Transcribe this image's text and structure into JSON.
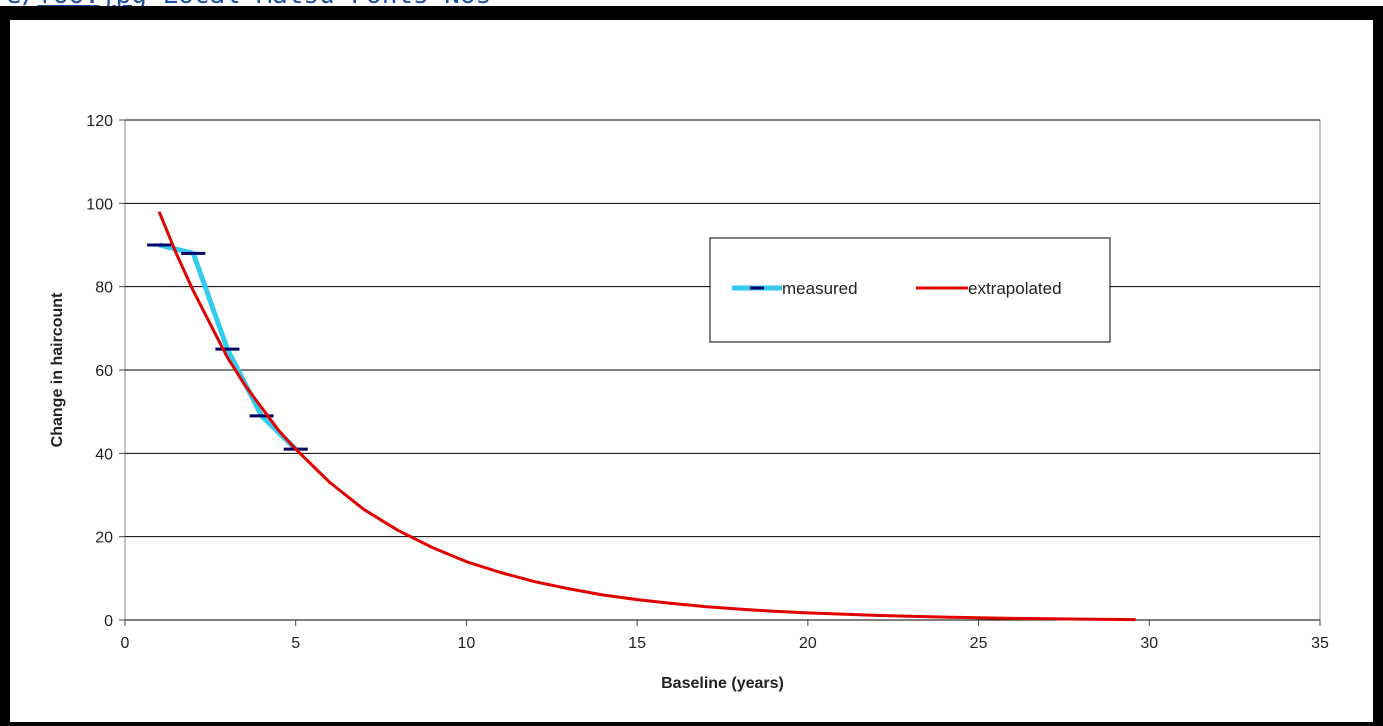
{
  "header": {
    "prefix": "e/",
    "link": "foo.jpg",
    "suffix": " Local Matsu Fonts Nos"
  },
  "colors": {
    "frame": "#000000",
    "grid": "#000000",
    "measured_line": "#33ccee",
    "measured_marker": "#000066",
    "extrapolated": "#e10000"
  },
  "chart_data": {
    "type": "line",
    "title": "",
    "xlabel": "Baseline (years)",
    "ylabel": "Change in haircount",
    "xlim": [
      0,
      35
    ],
    "ylim": [
      0,
      120
    ],
    "xticks": [
      0,
      5,
      10,
      15,
      20,
      25,
      30,
      35
    ],
    "yticks": [
      0,
      20,
      40,
      60,
      80,
      100,
      120
    ],
    "grid": "horizontal",
    "legend_placement": "upper-right",
    "series": [
      {
        "name": "measured",
        "style": "line-with-dash-markers",
        "x": [
          1,
          2,
          3,
          4,
          5
        ],
        "y": [
          90,
          88,
          65,
          49,
          41
        ]
      },
      {
        "name": "extrapolated",
        "style": "line",
        "x": [
          1,
          1.5,
          2,
          2.5,
          3,
          3.5,
          4,
          4.5,
          5,
          6,
          7,
          8,
          9,
          10,
          11,
          12,
          13,
          14,
          15,
          16,
          17,
          18,
          19,
          20,
          22,
          24,
          26,
          28,
          29.6
        ],
        "y": [
          98,
          88,
          79,
          71,
          63,
          56.5,
          51,
          45.5,
          41,
          33,
          26.5,
          21.5,
          17.4,
          14,
          11.4,
          9.2,
          7.5,
          6,
          4.9,
          4,
          3.2,
          2.6,
          2.1,
          1.7,
          1.1,
          0.7,
          0.4,
          0.2,
          0.1
        ]
      }
    ]
  }
}
